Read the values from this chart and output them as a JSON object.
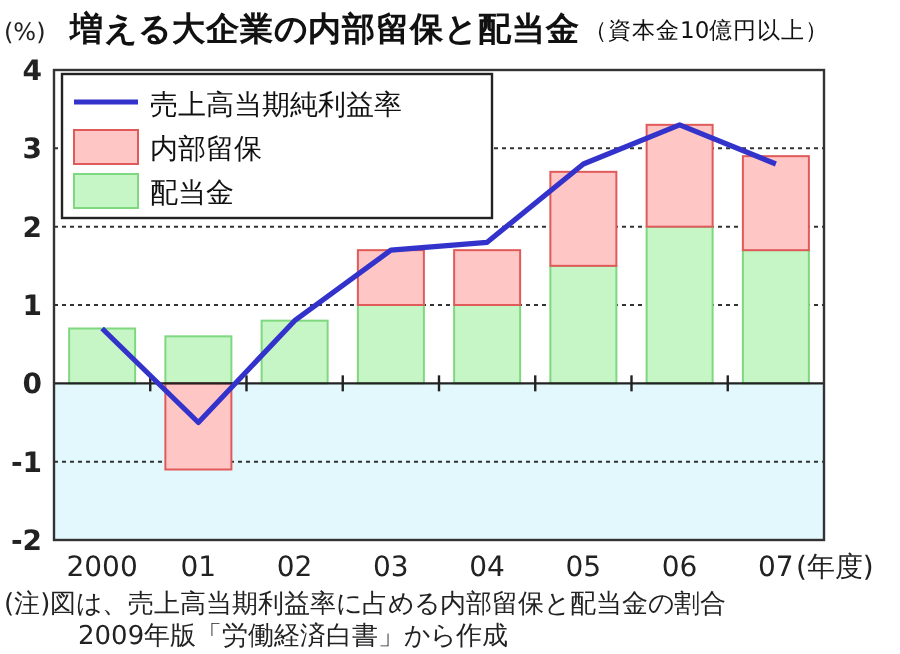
{
  "chart_data": {
    "type": "bar",
    "stacked": true,
    "title": "増える大企業の内部留保と配当金",
    "subtitle": "（資本金10億円以上）",
    "ylabel": "(%)",
    "xlabel": "(年度)",
    "categories": [
      "2000",
      "01",
      "02",
      "03",
      "04",
      "05",
      "06",
      "07"
    ],
    "series": [
      {
        "name": "配当金",
        "color": "#c6f5c6",
        "values": [
          0.7,
          0.6,
          0.8,
          1.0,
          1.0,
          1.5,
          2.0,
          1.7
        ]
      },
      {
        "name": "内部留保",
        "color": "#ffc6c6",
        "values": [
          null,
          -1.1,
          null,
          0.7,
          0.7,
          1.2,
          1.3,
          1.2
        ]
      },
      {
        "name": "売上高当期純利益率",
        "type": "line",
        "color": "#3333cc",
        "values": [
          0.7,
          -0.5,
          0.8,
          1.7,
          1.8,
          2.8,
          3.3,
          2.8
        ]
      }
    ],
    "ylim": [
      -2,
      4
    ],
    "yticks": [
      -2,
      -1,
      0,
      1,
      2,
      3,
      4
    ],
    "grid": "y",
    "legend": "top left",
    "bands": [
      {
        "axis": "y",
        "from": -2,
        "to": 0,
        "color": "#e2f8fc"
      }
    ],
    "annotations": [
      "(注)図は、売上高当期利益率に占める内部留保と配当金の割合",
      "2009年版「労働経済白書」から作成"
    ]
  }
}
